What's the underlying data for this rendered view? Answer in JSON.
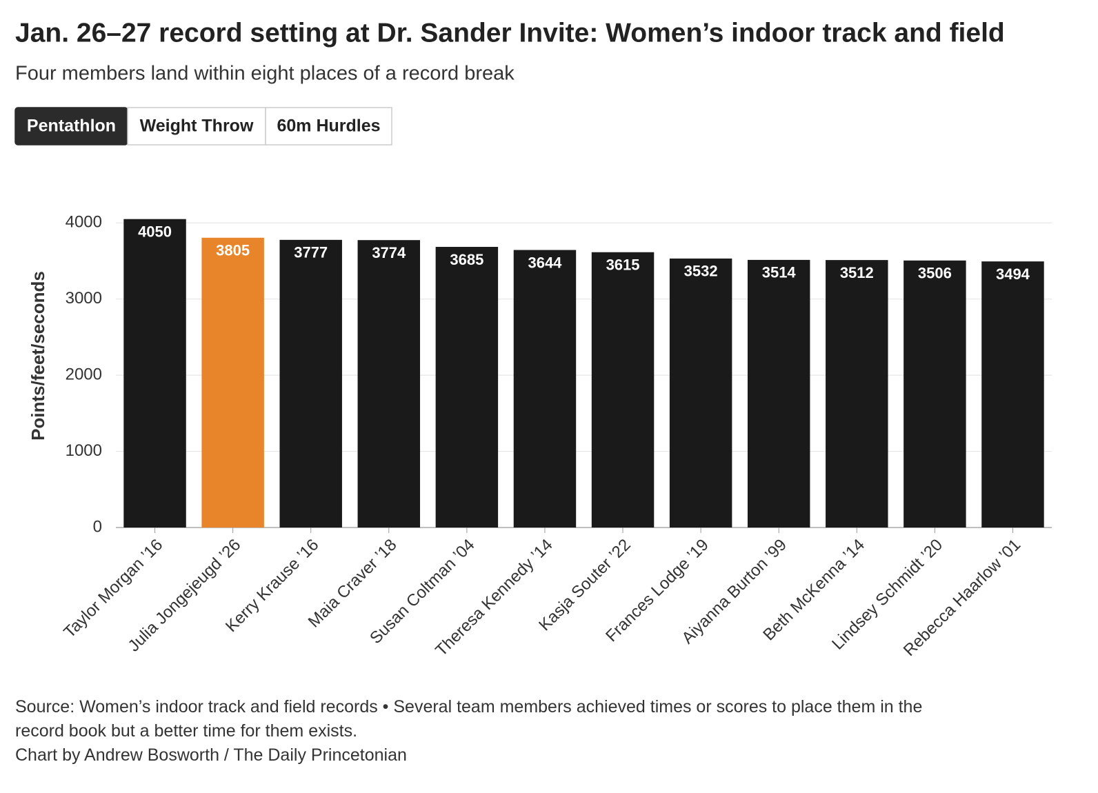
{
  "chart_data": {
    "type": "bar",
    "title": "Jan. 26–27 record setting at Dr. Sander Invite: Women’s indoor track and field",
    "subtitle": "Four members land within eight places of a record break",
    "y_label": "Points/feet/seconds",
    "categories": [
      "Taylor Morgan ’16",
      "Julia Jongejeugd ’26",
      "Kerry Krause ’16",
      "Maia Craver ’18",
      "Susan Coltman ’04",
      "Theresa Kennedy ’14",
      "Kasja Souter ’22",
      "Frances Lodge ’19",
      "Aiyanna Burton ’99",
      "Beth McKenna ’14",
      "Lindsey Schmidt ’20",
      "Rebecca Haarlow ’01"
    ],
    "values": [
      4050,
      3805,
      3777,
      3774,
      3685,
      3644,
      3615,
      3532,
      3514,
      3512,
      3506,
      3494
    ],
    "colors": [
      "#1a1a1a",
      "#e8852a",
      "#1a1a1a",
      "#1a1a1a",
      "#1a1a1a",
      "#1a1a1a",
      "#1a1a1a",
      "#1a1a1a",
      "#1a1a1a",
      "#1a1a1a",
      "#1a1a1a",
      "#1a1a1a"
    ],
    "ylim": [
      0,
      4500
    ],
    "yticks": [
      0,
      1000,
      2000,
      3000,
      4000
    ],
    "grid": true
  },
  "tabs": [
    "Pentathlon",
    "Weight Throw",
    "60m Hurdles"
  ],
  "notes": [
    "Source: Women’s indoor track and field records • Several team members achieved times or scores to place them in the record book but a better time for them exists.",
    "Chart by Andrew Bosworth / The Daily Princetonian"
  ]
}
